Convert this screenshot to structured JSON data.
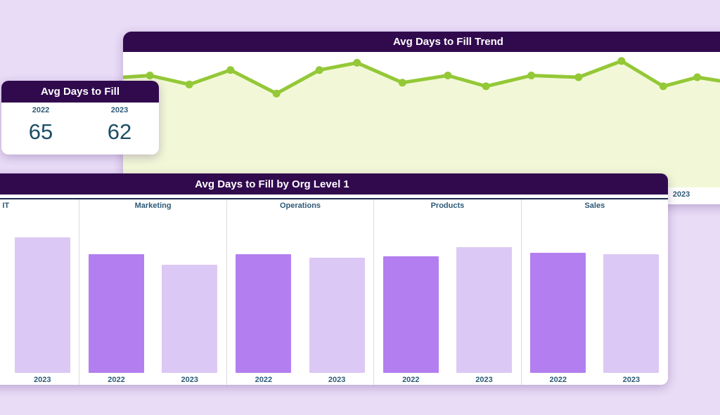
{
  "page": {
    "background_color": "#e9dcf7"
  },
  "colors": {
    "header_bg": "#310a4e",
    "header_text": "#ffffff",
    "card_bg": "#ffffff",
    "label_teal": "#2d5a78",
    "value_teal": "#1c4e66",
    "trend_line": "#94c837",
    "trend_fill": "#f2f8d7",
    "bar_2022": "#b37ff0",
    "bar_2023": "#dcc8f4",
    "navy_rule": "#1e2d50"
  },
  "trend_card": {
    "title": "Avg Days to Fill Trend",
    "x_axis_label": "2023"
  },
  "kpi_card": {
    "title": "Avg Days to Fill",
    "metrics": [
      {
        "label": "2022",
        "value": "65"
      },
      {
        "label": "2023",
        "value": "62"
      }
    ]
  },
  "bar_card": {
    "title": "Avg Days to Fill by Org Level 1"
  },
  "chart_data": [
    {
      "type": "area",
      "title": "Avg Days to Fill Trend",
      "xlabel": "",
      "ylabel": "",
      "ylim": [
        0,
        75
      ],
      "grid": false,
      "legend": false,
      "x_tick_labels": [
        {
          "label": "2023",
          "position": 0.935
        }
      ],
      "line_color": "#94c837",
      "fill_color": "#f2f8d7",
      "points": [
        {
          "x": 0.0,
          "value": 61,
          "dot": false
        },
        {
          "x": 0.045,
          "value": 62,
          "dot": true
        },
        {
          "x": 0.111,
          "value": 57,
          "dot": true
        },
        {
          "x": 0.18,
          "value": 65,
          "dot": true
        },
        {
          "x": 0.257,
          "value": 52,
          "dot": true
        },
        {
          "x": 0.329,
          "value": 65,
          "dot": true
        },
        {
          "x": 0.392,
          "value": 69,
          "dot": true
        },
        {
          "x": 0.468,
          "value": 58,
          "dot": true
        },
        {
          "x": 0.544,
          "value": 62,
          "dot": true
        },
        {
          "x": 0.608,
          "value": 56,
          "dot": true
        },
        {
          "x": 0.684,
          "value": 62,
          "dot": true
        },
        {
          "x": 0.763,
          "value": 61,
          "dot": true
        },
        {
          "x": 0.835,
          "value": 70,
          "dot": true
        },
        {
          "x": 0.905,
          "value": 56,
          "dot": true
        },
        {
          "x": 0.962,
          "value": 61,
          "dot": true
        },
        {
          "x": 1.0,
          "value": 59,
          "dot": false
        }
      ]
    },
    {
      "type": "bar",
      "title": "Avg Days to Fill by Org Level 1",
      "xlabel": "",
      "ylabel": "",
      "ylim": [
        0,
        100
      ],
      "grid": false,
      "series_colors": {
        "2022": "#b37ff0",
        "2023": "#dcc8f4"
      },
      "groups": [
        {
          "label": "IT",
          "bars": [
            {
              "year": "2023",
              "value": 78
            }
          ]
        },
        {
          "label": "Marketing",
          "bars": [
            {
              "year": "2022",
              "value": 68
            },
            {
              "year": "2023",
              "value": 62
            }
          ]
        },
        {
          "label": "Operations",
          "bars": [
            {
              "year": "2022",
              "value": 68
            },
            {
              "year": "2023",
              "value": 66
            }
          ]
        },
        {
          "label": "Products",
          "bars": [
            {
              "year": "2022",
              "value": 67
            },
            {
              "year": "2023",
              "value": 72
            }
          ]
        },
        {
          "label": "Sales",
          "bars": [
            {
              "year": "2022",
              "value": 69
            },
            {
              "year": "2023",
              "value": 68
            }
          ]
        }
      ]
    }
  ]
}
